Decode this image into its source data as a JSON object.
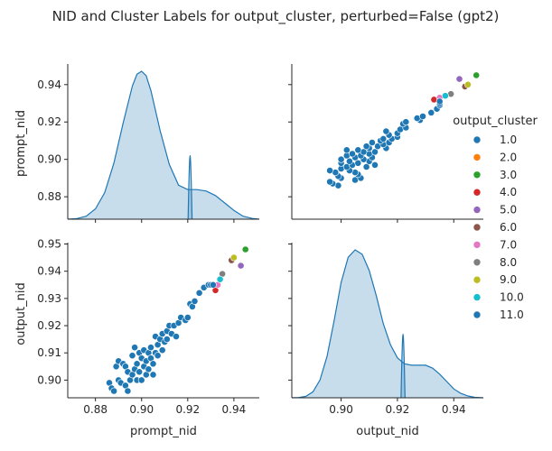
{
  "chart_data": {
    "type": "scatter",
    "kind": "pairplot",
    "title": "NID and Cluster Labels for output_cluster, perturbed=False (gpt2)",
    "variables": [
      "prompt_nid",
      "output_nid"
    ],
    "axes": {
      "prompt_nid": {
        "lim": [
          0.868,
          0.951
        ],
        "ticks": [
          0.88,
          0.9,
          0.92,
          0.94
        ],
        "tick_labels": [
          "0.88",
          "0.90",
          "0.92",
          "0.94"
        ]
      },
      "output_nid": {
        "lim": [
          0.8825,
          0.9505
        ],
        "ticks": [
          0.9,
          0.92,
          0.94
        ],
        "tick_labels": [
          "0.90",
          "0.92",
          "0.94"
        ]
      },
      "output_nid_left": {
        "lim": [
          0.8935,
          0.9505
        ],
        "ticks": [
          0.9,
          0.91,
          0.92,
          0.93,
          0.94,
          0.95
        ],
        "tick_labels": [
          "0.90",
          "0.91",
          "0.92",
          "0.93",
          "0.94",
          "0.95"
        ]
      }
    },
    "legend": {
      "title": "output_cluster",
      "placement": "center-right",
      "entries": [
        {
          "label": "1.0",
          "color": "#1f77b4"
        },
        {
          "label": "2.0",
          "color": "#ff7f0e"
        },
        {
          "label": "3.0",
          "color": "#2ca02c"
        },
        {
          "label": "4.0",
          "color": "#d62728"
        },
        {
          "label": "5.0",
          "color": "#9467bd"
        },
        {
          "label": "6.0",
          "color": "#8c564b"
        },
        {
          "label": "7.0",
          "color": "#e377c2"
        },
        {
          "label": "8.0",
          "color": "#7f7f7f"
        },
        {
          "label": "9.0",
          "color": "#bcbd22"
        },
        {
          "label": "10.0",
          "color": "#17becf"
        },
        {
          "label": "11.0",
          "color": "#1f77b4"
        }
      ]
    },
    "points": [
      [
        0.886,
        0.899,
        "1.0"
      ],
      [
        0.887,
        0.897,
        "1.0"
      ],
      [
        0.888,
        0.896,
        "1.0"
      ],
      [
        0.889,
        0.905,
        "1.0"
      ],
      [
        0.89,
        0.907,
        "1.0"
      ],
      [
        0.89,
        0.9,
        "1.0"
      ],
      [
        0.891,
        0.899,
        "1.0"
      ],
      [
        0.892,
        0.906,
        "1.0"
      ],
      [
        0.893,
        0.905,
        "1.0"
      ],
      [
        0.893,
        0.898,
        "1.0"
      ],
      [
        0.894,
        0.903,
        "1.0"
      ],
      [
        0.894,
        0.896,
        "1.0"
      ],
      [
        0.895,
        0.9,
        "1.0"
      ],
      [
        0.896,
        0.909,
        "1.0"
      ],
      [
        0.896,
        0.902,
        "1.0"
      ],
      [
        0.897,
        0.904,
        "1.0"
      ],
      [
        0.897,
        0.912,
        "1.0"
      ],
      [
        0.898,
        0.9,
        "1.0"
      ],
      [
        0.898,
        0.906,
        "1.0"
      ],
      [
        0.899,
        0.91,
        "1.0"
      ],
      [
        0.899,
        0.903,
        "1.0"
      ],
      [
        0.9,
        0.908,
        "1.0"
      ],
      [
        0.9,
        0.9,
        "1.0"
      ],
      [
        0.901,
        0.905,
        "1.0"
      ],
      [
        0.901,
        0.911,
        "1.0"
      ],
      [
        0.902,
        0.902,
        "1.0"
      ],
      [
        0.902,
        0.907,
        "1.0"
      ],
      [
        0.903,
        0.91,
        "1.0"
      ],
      [
        0.903,
        0.904,
        "1.0"
      ],
      [
        0.904,
        0.912,
        "1.0"
      ],
      [
        0.904,
        0.908,
        "1.0"
      ],
      [
        0.905,
        0.906,
        "1.0"
      ],
      [
        0.905,
        0.902,
        "1.0"
      ],
      [
        0.906,
        0.916,
        "1.0"
      ],
      [
        0.906,
        0.91,
        "1.0"
      ],
      [
        0.907,
        0.913,
        "1.0"
      ],
      [
        0.907,
        0.909,
        "1.0"
      ],
      [
        0.908,
        0.915,
        "1.0"
      ],
      [
        0.909,
        0.911,
        "1.0"
      ],
      [
        0.909,
        0.917,
        "1.0"
      ],
      [
        0.91,
        0.914,
        "1.0"
      ],
      [
        0.911,
        0.918,
        "1.0"
      ],
      [
        0.911,
        0.915,
        "1.0"
      ],
      [
        0.912,
        0.92,
        "1.0"
      ],
      [
        0.913,
        0.917,
        "1.0"
      ],
      [
        0.914,
        0.92,
        "1.0"
      ],
      [
        0.915,
        0.916,
        "1.0"
      ],
      [
        0.916,
        0.921,
        "1.0"
      ],
      [
        0.917,
        0.923,
        "1.0"
      ],
      [
        0.919,
        0.922,
        "1.0"
      ],
      [
        0.92,
        0.923,
        "1.0"
      ],
      [
        0.921,
        0.928,
        "1.0"
      ],
      [
        0.922,
        0.927,
        "1.0"
      ],
      [
        0.923,
        0.929,
        "1.0"
      ],
      [
        0.925,
        0.932,
        "1.0"
      ],
      [
        0.927,
        0.934,
        "1.0"
      ],
      [
        0.929,
        0.935,
        "1.0"
      ],
      [
        0.93,
        0.935,
        "1.0"
      ],
      [
        0.945,
        0.948,
        "3.0"
      ],
      [
        0.932,
        0.933,
        "4.0"
      ],
      [
        0.943,
        0.942,
        "5.0"
      ],
      [
        0.939,
        0.944,
        "6.0"
      ],
      [
        0.933,
        0.935,
        "7.0"
      ],
      [
        0.935,
        0.939,
        "8.0"
      ],
      [
        0.94,
        0.945,
        "9.0"
      ],
      [
        0.934,
        0.937,
        "10.0"
      ],
      [
        0.931,
        0.935,
        "11.0"
      ]
    ],
    "kde": {
      "prompt_nid": {
        "x": [
          0.868,
          0.872,
          0.876,
          0.88,
          0.884,
          0.888,
          0.892,
          0.896,
          0.898,
          0.9,
          0.902,
          0.904,
          0.908,
          0.912,
          0.916,
          0.92,
          0.924,
          0.928,
          0.932,
          0.936,
          0.94,
          0.944,
          0.948,
          0.951
        ],
        "density": [
          0.0,
          0.004,
          0.02,
          0.07,
          0.18,
          0.38,
          0.65,
          0.9,
          0.98,
          1.0,
          0.97,
          0.87,
          0.6,
          0.37,
          0.23,
          0.2,
          0.2,
          0.19,
          0.16,
          0.11,
          0.06,
          0.02,
          0.005,
          0.0
        ]
      },
      "output_nid": {
        "x": [
          0.8825,
          0.885,
          0.8875,
          0.89,
          0.8925,
          0.895,
          0.8975,
          0.9,
          0.9025,
          0.905,
          0.9075,
          0.91,
          0.9125,
          0.915,
          0.9175,
          0.92,
          0.9225,
          0.925,
          0.9275,
          0.93,
          0.9325,
          0.935,
          0.9375,
          0.94,
          0.9425,
          0.945,
          0.9475,
          0.9505
        ],
        "density": [
          0.0,
          0.002,
          0.01,
          0.04,
          0.12,
          0.28,
          0.52,
          0.78,
          0.95,
          1.0,
          0.97,
          0.86,
          0.69,
          0.5,
          0.36,
          0.27,
          0.23,
          0.22,
          0.22,
          0.22,
          0.2,
          0.16,
          0.11,
          0.06,
          0.03,
          0.012,
          0.003,
          0.0
        ]
      },
      "spike": {
        "prompt_nid": 0.921,
        "output_nid": 0.922
      }
    }
  }
}
